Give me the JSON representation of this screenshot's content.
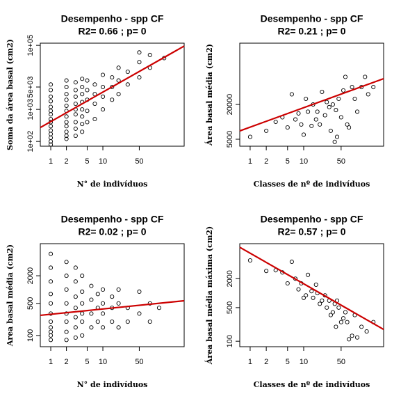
{
  "chart_data": [
    {
      "type": "scatter",
      "title": "Desempenho - spp CF",
      "subtitle": "R2= 0.66  ; p= 0",
      "xlabel": "N° de indivíduos",
      "ylabel": "Soma da área basal (cm2)",
      "log": "xy",
      "color": "#000000",
      "xlim": [
        0.63,
        363
      ],
      "ylim": [
        71,
        117000
      ],
      "xticks": [
        1,
        2,
        5,
        10,
        50
      ],
      "yticks": [
        {
          "value": 100,
          "label": "1e+02"
        },
        {
          "value": 1000,
          "label": "1e+03"
        },
        {
          "value": 5000,
          "label": "5e+03"
        },
        {
          "value": 100000,
          "label": "1e+05"
        }
      ],
      "x": [
        1,
        1,
        1,
        1,
        1,
        1,
        1,
        1,
        1,
        1,
        1,
        1,
        1,
        1,
        1,
        2,
        2,
        2,
        2,
        2,
        2,
        2,
        2,
        2,
        2,
        2,
        2,
        3,
        3,
        3,
        3,
        3,
        3,
        3,
        3,
        3,
        4,
        4,
        4,
        4,
        4,
        4,
        4,
        4,
        5,
        5,
        5,
        5,
        5,
        7,
        7,
        7,
        7,
        10,
        10,
        10,
        10,
        15,
        15,
        15,
        20,
        20,
        20,
        30,
        30,
        50,
        50,
        50,
        80,
        80,
        150
      ],
      "y": [
        80,
        100,
        130,
        170,
        220,
        300,
        400,
        500,
        700,
        900,
        1200,
        1800,
        2500,
        4000,
        6000,
        120,
        150,
        200,
        300,
        400,
        600,
        900,
        1300,
        2000,
        3000,
        5000,
        8000,
        150,
        250,
        400,
        700,
        1000,
        1500,
        2500,
        4000,
        7000,
        200,
        350,
        600,
        1000,
        1700,
        3000,
        5000,
        9000,
        400,
        900,
        2000,
        4000,
        8000,
        500,
        1500,
        3000,
        6000,
        1000,
        2500,
        5000,
        12000,
        2000,
        5000,
        10000,
        3000,
        8000,
        20000,
        6000,
        15000,
        10000,
        30000,
        60000,
        20000,
        50000,
        40000
      ],
      "fit": {
        "color": "#cc0000",
        "x": [
          0.63,
          363
        ],
        "y": [
          272,
          95000
        ]
      }
    },
    {
      "type": "scatter",
      "title": "Desempenho - spp CF",
      "subtitle": "R2= 0.21  ; p= 0",
      "xlabel": "Classes de nº de indivíduos",
      "ylabel": "Área basal média (cm2)",
      "log": "xy",
      "color": "#000000",
      "xlim": [
        0.64,
        311
      ],
      "ylim": [
        3790,
        230000
      ],
      "xticks": [
        1,
        2,
        5,
        10,
        50
      ],
      "yticks": [
        5000,
        20000
      ],
      "x": [
        1,
        2,
        3,
        4,
        5,
        6,
        7,
        8,
        9,
        10,
        11,
        12,
        14,
        15,
        17,
        18,
        20,
        22,
        25,
        27,
        30,
        32,
        35,
        38,
        40,
        42,
        45,
        50,
        55,
        60,
        65,
        70,
        80,
        90,
        100,
        120,
        140,
        160,
        200
      ],
      "y": [
        5500,
        7000,
        10000,
        12000,
        8000,
        30000,
        11000,
        14000,
        9000,
        6000,
        25000,
        15000,
        8500,
        20000,
        11000,
        15000,
        9000,
        33000,
        13000,
        22000,
        18000,
        7000,
        20000,
        4500,
        16000,
        5500,
        25000,
        12000,
        35000,
        60000,
        9000,
        8000,
        40000,
        25000,
        15000,
        40000,
        60000,
        30000,
        40000
      ],
      "fit": {
        "color": "#cc0000",
        "x": [
          0.64,
          311
        ],
        "y": [
          6970,
          55900
        ]
      }
    },
    {
      "type": "scatter",
      "title": "Desempenho - spp CF",
      "subtitle": "R2= 0.02  ; p= 0",
      "xlabel": "N° de indivíduos",
      "ylabel": "Area basal média (cm2)",
      "log": "xy",
      "color": "#000000",
      "xlim": [
        0.63,
        363
      ],
      "ylim": [
        57,
        10000
      ],
      "xticks": [
        1,
        2,
        5,
        10,
        50
      ],
      "yticks": [
        100,
        500,
        2000
      ],
      "x": [
        1,
        1,
        1,
        1,
        1,
        1,
        1,
        1,
        1,
        1,
        1,
        2,
        2,
        2,
        2,
        2,
        2,
        2,
        2,
        3,
        3,
        3,
        3,
        3,
        3,
        3,
        4,
        4,
        4,
        4,
        4,
        4,
        6,
        6,
        6,
        6,
        8,
        8,
        8,
        10,
        10,
        10,
        10,
        15,
        15,
        15,
        20,
        20,
        20,
        30,
        30,
        50,
        50,
        80,
        80,
        120
      ],
      "y": [
        80,
        100,
        120,
        150,
        200,
        300,
        500,
        800,
        1500,
        3000,
        6000,
        80,
        120,
        200,
        300,
        500,
        1000,
        2000,
        4000,
        90,
        150,
        250,
        400,
        700,
        1500,
        3000,
        100,
        200,
        300,
        500,
        900,
        2000,
        150,
        300,
        600,
        1200,
        200,
        400,
        800,
        150,
        300,
        500,
        1000,
        200,
        400,
        700,
        150,
        500,
        1000,
        200,
        400,
        300,
        900,
        200,
        500,
        400
      ],
      "fit": {
        "color": "#cc0000",
        "x": [
          0.63,
          363
        ],
        "y": [
          275,
          571
        ]
      }
    },
    {
      "type": "scatter",
      "title": "Desempenho - spp CF",
      "subtitle": "R2= 0.57  ; p= 0",
      "xlabel": "Classes de nº de indivíduos",
      "ylabel": "Área basal média máxima (cm2)",
      "log": "xy",
      "color": "#000000",
      "xlim": [
        0.64,
        311
      ],
      "ylim": [
        77,
        10700
      ],
      "xticks": [
        1,
        2,
        5,
        10,
        50
      ],
      "yticks": [
        100,
        500,
        2000
      ],
      "x": [
        1,
        2,
        3,
        4,
        5,
        6,
        7,
        8,
        9,
        10,
        11,
        12,
        14,
        15,
        17,
        18,
        20,
        22,
        25,
        27,
        30,
        32,
        35,
        38,
        40,
        42,
        45,
        50,
        55,
        60,
        65,
        70,
        80,
        90,
        100,
        120,
        150,
        200
      ],
      "y": [
        4800,
        2900,
        3000,
        2700,
        1600,
        4500,
        2000,
        1200,
        1600,
        800,
        900,
        2400,
        1100,
        800,
        1500,
        1000,
        600,
        700,
        900,
        500,
        700,
        350,
        400,
        600,
        200,
        700,
        500,
        250,
        300,
        400,
        250,
        110,
        130,
        350,
        120,
        200,
        160,
        250
      ],
      "fit": {
        "color": "#cc0000",
        "x": [
          0.64,
          311
        ],
        "y": [
          9000,
          176
        ]
      }
    }
  ]
}
